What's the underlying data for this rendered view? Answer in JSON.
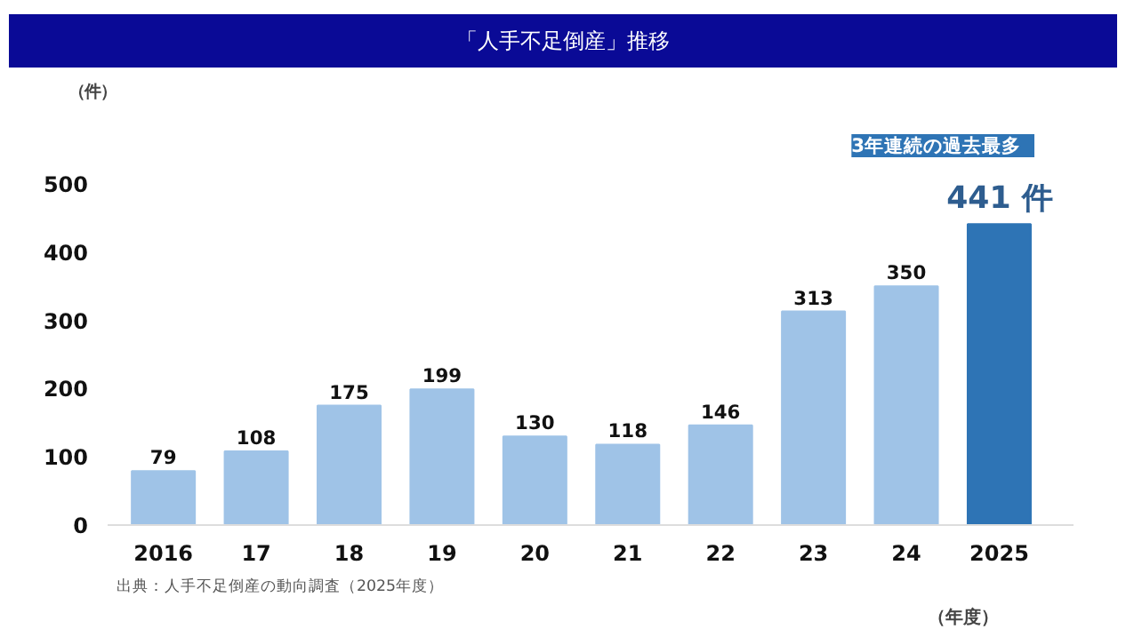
{
  "chart_data": {
    "type": "bar",
    "title": "「人手不足倒産」推移",
    "categories": [
      "2016",
      "17",
      "18",
      "19",
      "20",
      "21",
      "22",
      "23",
      "24",
      "2025"
    ],
    "values": [
      79,
      108,
      175,
      199,
      130,
      118,
      146,
      313,
      350,
      441
    ],
    "colors": [
      "#9fc3e7",
      "#9fc3e7",
      "#9fc3e7",
      "#9fc3e7",
      "#9fc3e7",
      "#9fc3e7",
      "#9fc3e7",
      "#9fc3e7",
      "#9fc3e7",
      "#2e74b5"
    ],
    "value_labels": [
      "79",
      "108",
      "175",
      "199",
      "130",
      "118",
      "146",
      "313",
      "350",
      "441 件"
    ],
    "xlabel": "（年度）",
    "ylabel": "（件）",
    "ylim": [
      0,
      500
    ],
    "yticks": [
      0,
      100,
      200,
      300,
      400,
      500
    ],
    "grid": false,
    "annotations": [
      "3年連続の過去最多",
      "出典：人手不足倒産の動向調査（2025年度）"
    ]
  }
}
